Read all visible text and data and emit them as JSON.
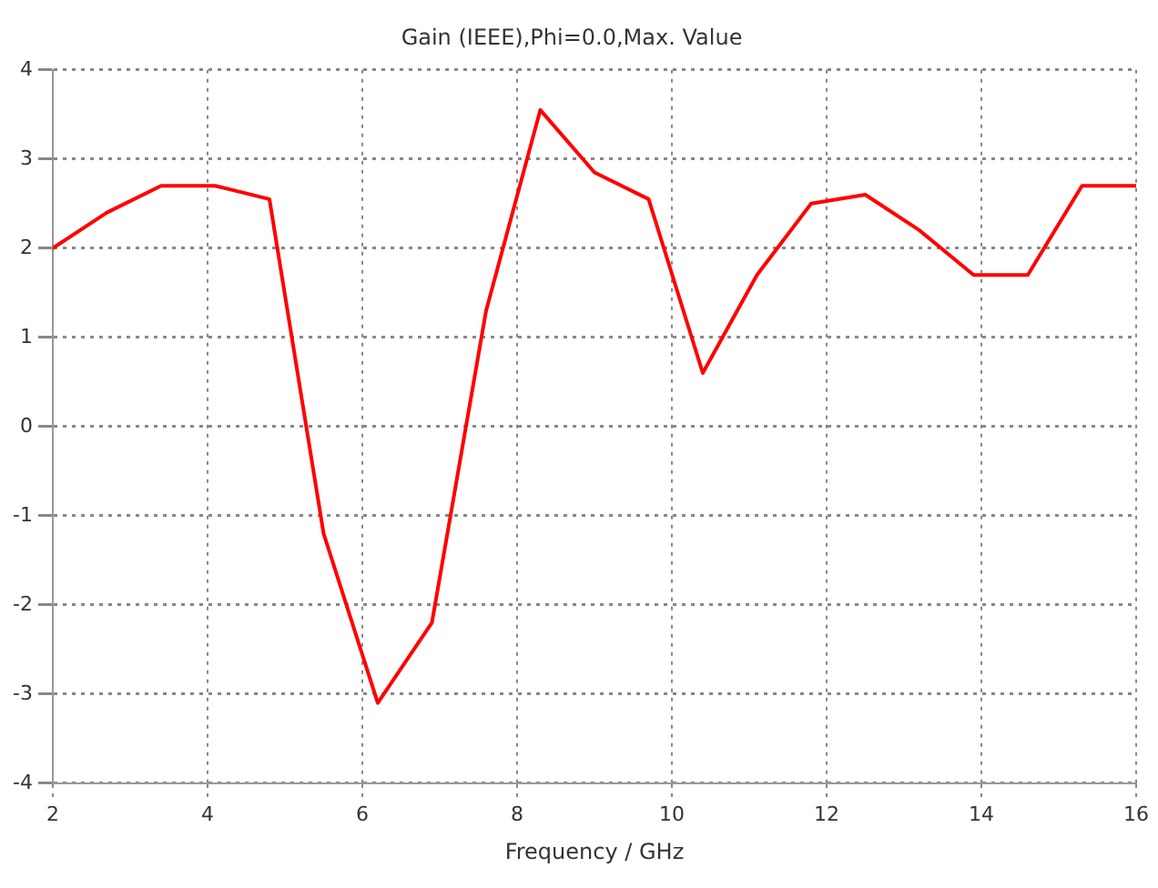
{
  "chart_data": {
    "type": "line",
    "title": "Gain (IEEE),Phi=0.0,Max. Value",
    "xlabel": "Frequency / GHz",
    "x": [
      2,
      2.7,
      3.4,
      4.1,
      4.8,
      5.5,
      6.2,
      6.9,
      7.6,
      8.3,
      9.0,
      9.7,
      10.4,
      11.1,
      11.8,
      12.5,
      13.2,
      13.9,
      14.6,
      15.3,
      16
    ],
    "series": [
      {
        "color": "#ff0000",
        "values": [
          2.0,
          2.4,
          2.7,
          2.7,
          2.55,
          -1.2,
          -3.1,
          -2.2,
          1.3,
          3.55,
          2.85,
          2.55,
          0.6,
          1.7,
          2.5,
          2.6,
          2.2,
          1.7,
          1.7,
          2.7,
          2.7
        ]
      }
    ],
    "xlim": [
      2,
      16
    ],
    "xticks": [
      2,
      4,
      6,
      8,
      10,
      12,
      14,
      16
    ],
    "ylim": [
      -4,
      4
    ],
    "yticks": [
      -4,
      -3,
      -2,
      -1,
      0,
      1,
      2,
      3,
      4
    ],
    "grid": true,
    "legend": false,
    "marker": "none",
    "line_style": "solid"
  }
}
